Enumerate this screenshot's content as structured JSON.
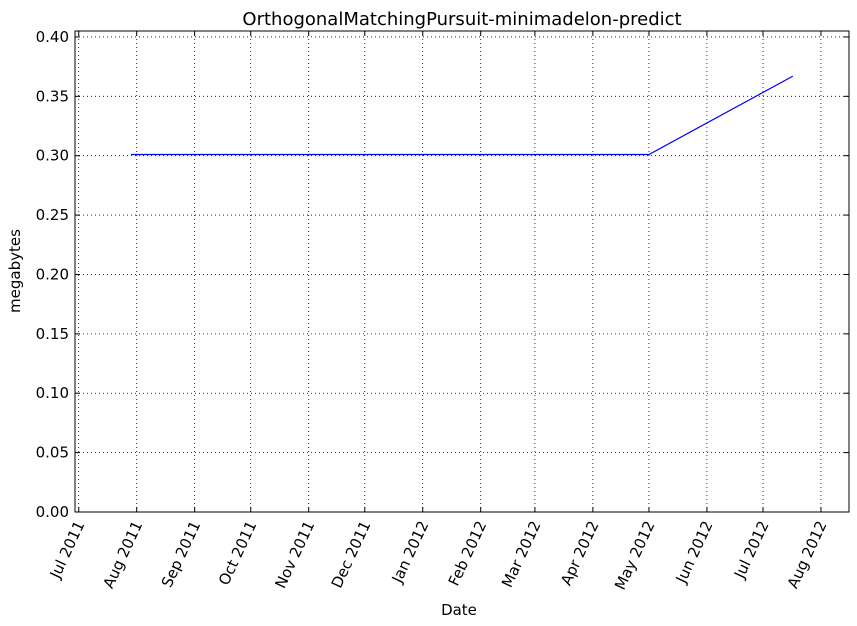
{
  "chart_data": {
    "type": "line",
    "title": "OrthogonalMatchingPursuit-minimadelon-predict",
    "xlabel": "Date",
    "ylabel": "megabytes",
    "x_ticks": [
      "Jul 2011",
      "Aug 2011",
      "Sep 2011",
      "Oct 2011",
      "Nov 2011",
      "Dec 2011",
      "Jan 2012",
      "Feb 2012",
      "Mar 2012",
      "Apr 2012",
      "May 2012",
      "Jun 2012",
      "Jul 2012",
      "Aug 2012"
    ],
    "y_ticks": [
      "0.00",
      "0.05",
      "0.10",
      "0.15",
      "0.20",
      "0.25",
      "0.30",
      "0.35",
      "0.40"
    ],
    "xlim": [
      "2011-06-29",
      "2012-08-16"
    ],
    "ylim": [
      0,
      0.405
    ],
    "grid": true,
    "series": [
      {
        "color": "#0000ff",
        "points": [
          {
            "x": "2011-07-29",
            "y": 0.301
          },
          {
            "x": "2012-05-01",
            "y": 0.301
          },
          {
            "x": "2012-07-17",
            "y": 0.367
          }
        ]
      }
    ]
  }
}
